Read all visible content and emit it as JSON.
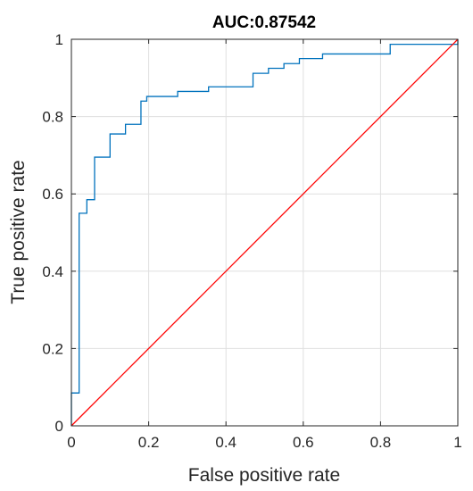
{
  "chart_data": {
    "type": "line",
    "title": "AUC:0.87542",
    "xlabel": "False positive rate",
    "ylabel": "True positive rate",
    "xlim": [
      0,
      1
    ],
    "ylim": [
      0,
      1
    ],
    "grid": true,
    "xticks": [
      {
        "value": 0,
        "label": "0"
      },
      {
        "value": 0.2,
        "label": "0.2"
      },
      {
        "value": 0.4,
        "label": "0.4"
      },
      {
        "value": 0.6,
        "label": "0.6"
      },
      {
        "value": 0.8,
        "label": "0.8"
      },
      {
        "value": 1,
        "label": "1"
      }
    ],
    "yticks": [
      {
        "value": 0,
        "label": "0"
      },
      {
        "value": 0.2,
        "label": "0.2"
      },
      {
        "value": 0.4,
        "label": "0.4"
      },
      {
        "value": 0.6,
        "label": "0.6"
      },
      {
        "value": 0.8,
        "label": "0.8"
      },
      {
        "value": 1,
        "label": "1"
      }
    ],
    "series": [
      {
        "color": "#0072BD",
        "style": "step",
        "points": [
          [
            0,
            0
          ],
          [
            0,
            0.085
          ],
          [
            0.02,
            0.085
          ],
          [
            0.02,
            0.55
          ],
          [
            0.04,
            0.55
          ],
          [
            0.04,
            0.585
          ],
          [
            0.06,
            0.585
          ],
          [
            0.06,
            0.695
          ],
          [
            0.1,
            0.695
          ],
          [
            0.1,
            0.755
          ],
          [
            0.14,
            0.755
          ],
          [
            0.14,
            0.78
          ],
          [
            0.18,
            0.78
          ],
          [
            0.18,
            0.84
          ],
          [
            0.195,
            0.84
          ],
          [
            0.195,
            0.852
          ],
          [
            0.275,
            0.852
          ],
          [
            0.275,
            0.865
          ],
          [
            0.355,
            0.865
          ],
          [
            0.355,
            0.877
          ],
          [
            0.47,
            0.877
          ],
          [
            0.47,
            0.912
          ],
          [
            0.51,
            0.912
          ],
          [
            0.51,
            0.925
          ],
          [
            0.55,
            0.925
          ],
          [
            0.55,
            0.937
          ],
          [
            0.59,
            0.937
          ],
          [
            0.59,
            0.95
          ],
          [
            0.65,
            0.95
          ],
          [
            0.65,
            0.962
          ],
          [
            0.825,
            0.962
          ],
          [
            0.825,
            0.987
          ],
          [
            1,
            0.987
          ],
          [
            1,
            1
          ]
        ]
      },
      {
        "color": "#FF0000",
        "style": "line",
        "points": [
          [
            0,
            0
          ],
          [
            1,
            1
          ]
        ]
      }
    ]
  }
}
